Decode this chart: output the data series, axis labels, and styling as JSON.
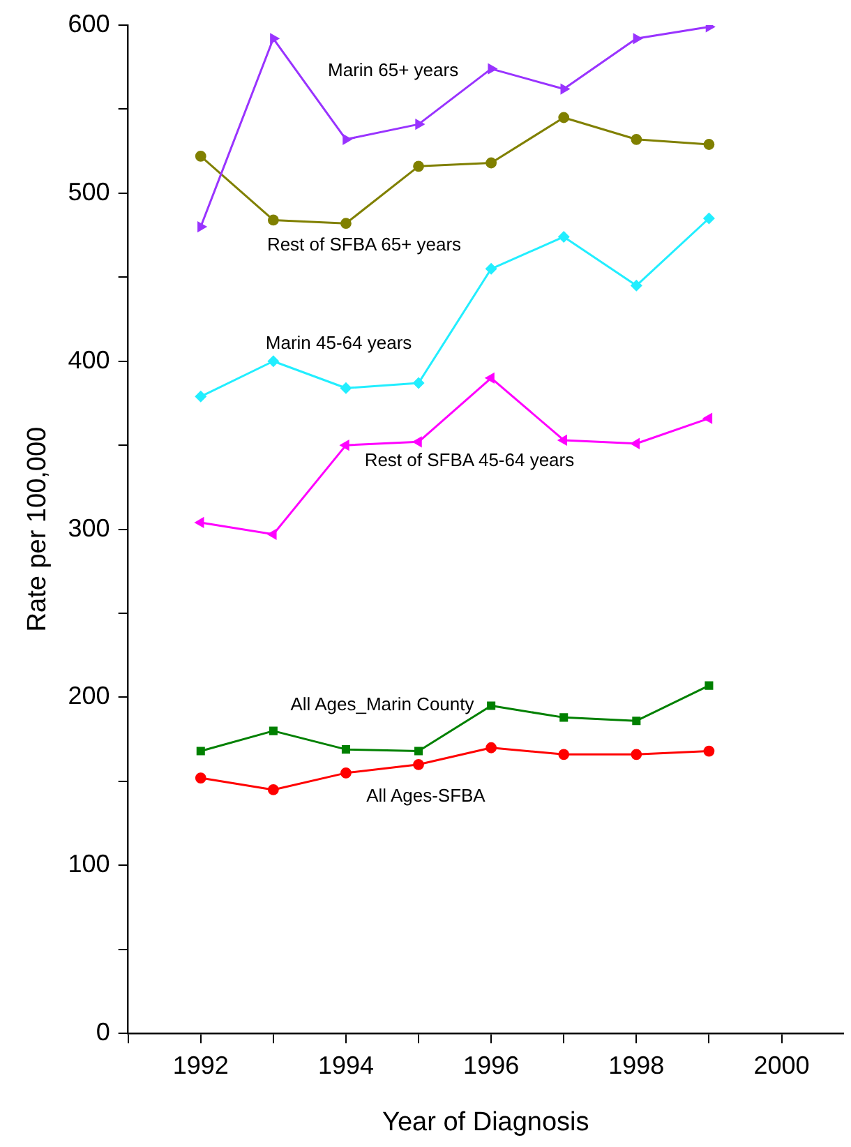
{
  "chart_data": {
    "type": "line",
    "xlabel": "Year of Diagnosis",
    "ylabel": "Rate per 100,000",
    "xlim": [
      1991,
      2000.85
    ],
    "xticks": [
      {
        "value": 1991,
        "label": null
      },
      1992,
      {
        "value": 1993,
        "label": null
      },
      1994,
      {
        "value": 1995,
        "label": null
      },
      1996,
      {
        "value": 1997,
        "label": null
      },
      1998,
      {
        "value": 1999,
        "label": null
      },
      2000
    ],
    "ylim": [
      0,
      600
    ],
    "yticks": [
      0,
      {
        "value": 50,
        "label": null
      },
      100,
      {
        "value": 150,
        "label": null
      },
      200,
      {
        "value": 250,
        "label": null
      },
      300,
      {
        "value": 350,
        "label": null
      },
      400,
      {
        "value": 450,
        "label": null
      },
      500,
      {
        "value": 550,
        "label": null
      },
      600
    ],
    "x": [
      1992,
      1993,
      1994,
      1995,
      1996,
      1997,
      1998,
      1999
    ],
    "grid": false,
    "legend": false,
    "line_style": "solid",
    "series": [
      {
        "name": "Marin 65+ years",
        "color": "#9933ff",
        "marker": "triangle",
        "values": [
          480,
          592,
          532,
          541,
          574,
          562,
          592,
          599
        ]
      },
      {
        "name": "Rest of SFBA 65+ years",
        "color": "#808000",
        "marker": "circle",
        "values": [
          522,
          484,
          482,
          516,
          518,
          545,
          532,
          529
        ]
      },
      {
        "name": "Marin 45-64 years",
        "color": "#22eeff",
        "marker": "diamond",
        "values": [
          379,
          400,
          384,
          387,
          455,
          474,
          445,
          485
        ]
      },
      {
        "name": "Rest of SFBA 45-64 years",
        "color": "#ff00ff",
        "marker": "triangle",
        "values": [
          304,
          297,
          350,
          352,
          390,
          353,
          351,
          366
        ]
      },
      {
        "name": "All Ages_Marin County",
        "color": "#008000",
        "marker": "square",
        "values": [
          168,
          180,
          169,
          168,
          195,
          188,
          186,
          207
        ]
      },
      {
        "name": "All Ages-SFBA",
        "color": "#ff0000",
        "marker": "circle",
        "values": [
          152,
          145,
          155,
          160,
          170,
          166,
          166,
          168
        ]
      }
    ]
  }
}
